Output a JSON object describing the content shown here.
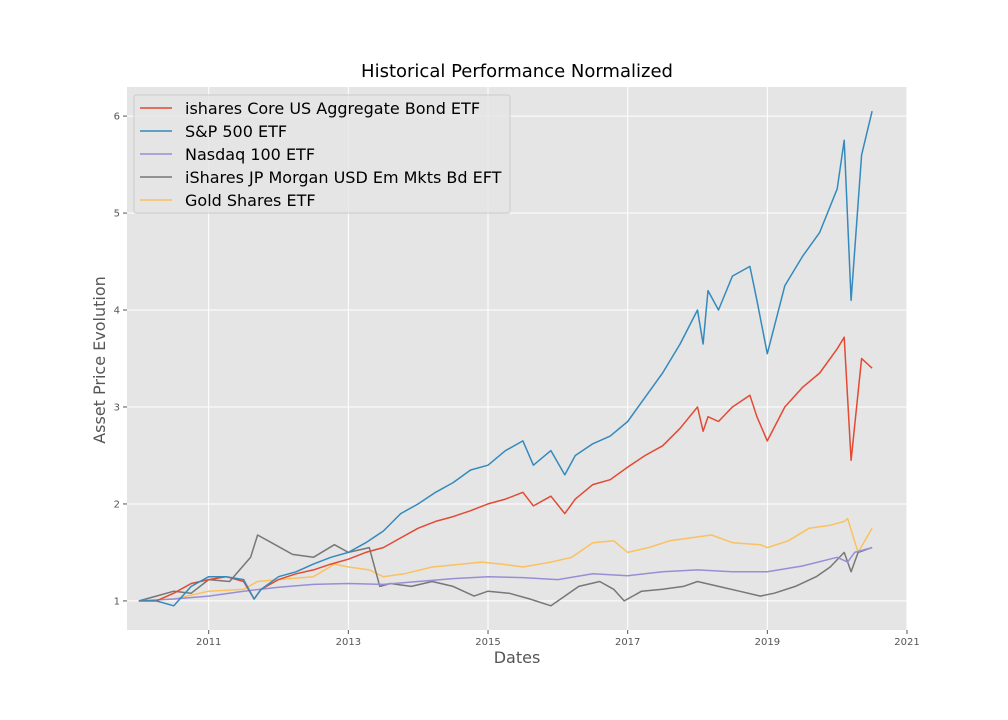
{
  "chart_data": {
    "type": "line",
    "title": "Historical Performance Normalized",
    "xlabel": "Dates",
    "ylabel": "Asset Price Evolution",
    "xlim": [
      2009.83,
      2021.0
    ],
    "ylim": [
      0.7,
      6.3
    ],
    "xticks": [
      2011,
      2013,
      2015,
      2017,
      2019,
      2021
    ],
    "xtick_labels": [
      "2011",
      "2013",
      "2015",
      "2017",
      "2019",
      "2021"
    ],
    "yticks": [
      1,
      2,
      3,
      4,
      5,
      6
    ],
    "ytick_labels": [
      "1",
      "2",
      "3",
      "4",
      "5",
      "6"
    ],
    "grid": true,
    "style": "ggplot",
    "legend_position": "upper-left",
    "series": [
      {
        "name": "ishares Core US Aggregate Bond ETF",
        "color": "#E24A33",
        "x": [
          2010.0,
          2010.25,
          2010.5,
          2010.75,
          2011.0,
          2011.25,
          2011.5,
          2011.65,
          2011.75,
          2012.0,
          2012.25,
          2012.5,
          2012.75,
          2013.0,
          2013.25,
          2013.5,
          2013.75,
          2014.0,
          2014.25,
          2014.5,
          2014.75,
          2015.0,
          2015.25,
          2015.5,
          2015.65,
          2015.9,
          2016.1,
          2016.25,
          2016.5,
          2016.75,
          2017.0,
          2017.25,
          2017.5,
          2017.75,
          2018.0,
          2018.08,
          2018.15,
          2018.3,
          2018.5,
          2018.75,
          2018.85,
          2019.0,
          2019.25,
          2019.5,
          2019.75,
          2020.0,
          2020.1,
          2020.2,
          2020.35,
          2020.5
        ],
        "y": [
          1.0,
          1.0,
          1.08,
          1.18,
          1.22,
          1.25,
          1.2,
          1.02,
          1.12,
          1.22,
          1.28,
          1.32,
          1.38,
          1.43,
          1.5,
          1.55,
          1.65,
          1.75,
          1.82,
          1.87,
          1.93,
          2.0,
          2.05,
          2.12,
          1.98,
          2.08,
          1.9,
          2.05,
          2.2,
          2.25,
          2.38,
          2.5,
          2.6,
          2.78,
          3.0,
          2.75,
          2.9,
          2.85,
          3.0,
          3.12,
          2.9,
          2.65,
          3.0,
          3.2,
          3.35,
          3.6,
          3.72,
          2.45,
          3.5,
          3.4
        ]
      },
      {
        "name": "S&P 500 ETF",
        "color": "#348ABD",
        "x": [
          2010.0,
          2010.25,
          2010.5,
          2010.75,
          2011.0,
          2011.25,
          2011.5,
          2011.65,
          2011.75,
          2012.0,
          2012.25,
          2012.5,
          2012.75,
          2013.0,
          2013.25,
          2013.5,
          2013.75,
          2014.0,
          2014.25,
          2014.5,
          2014.75,
          2015.0,
          2015.25,
          2015.5,
          2015.65,
          2015.9,
          2016.1,
          2016.25,
          2016.5,
          2016.75,
          2017.0,
          2017.25,
          2017.5,
          2017.75,
          2018.0,
          2018.08,
          2018.15,
          2018.3,
          2018.5,
          2018.75,
          2018.85,
          2019.0,
          2019.25,
          2019.5,
          2019.75,
          2020.0,
          2020.1,
          2020.2,
          2020.35,
          2020.5
        ],
        "y": [
          1.0,
          1.0,
          0.95,
          1.15,
          1.25,
          1.25,
          1.22,
          1.02,
          1.12,
          1.25,
          1.3,
          1.38,
          1.45,
          1.5,
          1.6,
          1.72,
          1.9,
          2.0,
          2.12,
          2.22,
          2.35,
          2.4,
          2.55,
          2.65,
          2.4,
          2.55,
          2.3,
          2.5,
          2.62,
          2.7,
          2.85,
          3.1,
          3.35,
          3.65,
          4.0,
          3.65,
          4.2,
          4.0,
          4.35,
          4.45,
          4.1,
          3.55,
          4.25,
          4.55,
          4.8,
          5.25,
          5.75,
          4.1,
          5.6,
          6.05
        ]
      },
      {
        "name": "Nasdaq 100 ETF",
        "color": "#988ED5",
        "x": [
          2010.0,
          2010.5,
          2011.0,
          2011.5,
          2012.0,
          2012.5,
          2013.0,
          2013.5,
          2014.0,
          2014.5,
          2015.0,
          2015.5,
          2016.0,
          2016.5,
          2017.0,
          2017.5,
          2018.0,
          2018.5,
          2019.0,
          2019.5,
          2020.0,
          2020.15,
          2020.25,
          2020.5
        ],
        "y": [
          1.0,
          1.02,
          1.05,
          1.1,
          1.14,
          1.17,
          1.18,
          1.17,
          1.2,
          1.23,
          1.25,
          1.24,
          1.22,
          1.28,
          1.26,
          1.3,
          1.32,
          1.3,
          1.3,
          1.36,
          1.45,
          1.4,
          1.5,
          1.55
        ]
      },
      {
        "name": "iShares JP Morgan USD Em Mkts Bd EFT",
        "color": "#777777",
        "x": [
          2010.0,
          2010.25,
          2010.5,
          2010.75,
          2011.0,
          2011.3,
          2011.6,
          2011.7,
          2011.9,
          2012.2,
          2012.5,
          2012.8,
          2013.0,
          2013.3,
          2013.45,
          2013.6,
          2013.9,
          2014.2,
          2014.5,
          2014.8,
          2015.0,
          2015.3,
          2015.6,
          2015.9,
          2016.1,
          2016.3,
          2016.6,
          2016.8,
          2016.95,
          2017.2,
          2017.5,
          2017.8,
          2018.0,
          2018.3,
          2018.6,
          2018.9,
          2019.1,
          2019.4,
          2019.7,
          2019.9,
          2020.1,
          2020.2,
          2020.3,
          2020.5
        ],
        "y": [
          1.0,
          1.05,
          1.1,
          1.08,
          1.22,
          1.2,
          1.45,
          1.68,
          1.6,
          1.48,
          1.45,
          1.58,
          1.5,
          1.55,
          1.15,
          1.18,
          1.15,
          1.2,
          1.15,
          1.05,
          1.1,
          1.08,
          1.02,
          0.95,
          1.05,
          1.15,
          1.2,
          1.12,
          1.0,
          1.1,
          1.12,
          1.15,
          1.2,
          1.15,
          1.1,
          1.05,
          1.08,
          1.15,
          1.25,
          1.35,
          1.5,
          1.3,
          1.5,
          1.55
        ]
      },
      {
        "name": "Gold Shares ETF",
        "color": "#FBC15E",
        "x": [
          2010.0,
          2010.5,
          2011.0,
          2011.5,
          2011.7,
          2012.0,
          2012.5,
          2012.8,
          2013.0,
          2013.3,
          2013.5,
          2013.8,
          2014.2,
          2014.5,
          2014.9,
          2015.2,
          2015.5,
          2015.9,
          2016.2,
          2016.5,
          2016.8,
          2017.0,
          2017.3,
          2017.6,
          2017.9,
          2018.2,
          2018.5,
          2018.9,
          2019.0,
          2019.3,
          2019.6,
          2019.9,
          2020.1,
          2020.15,
          2020.3,
          2020.5
        ],
        "y": [
          1.0,
          1.02,
          1.1,
          1.12,
          1.2,
          1.22,
          1.25,
          1.38,
          1.35,
          1.32,
          1.25,
          1.28,
          1.35,
          1.37,
          1.4,
          1.38,
          1.35,
          1.4,
          1.45,
          1.6,
          1.62,
          1.5,
          1.55,
          1.62,
          1.65,
          1.68,
          1.6,
          1.58,
          1.55,
          1.62,
          1.75,
          1.78,
          1.82,
          1.85,
          1.5,
          1.75
        ]
      }
    ]
  }
}
